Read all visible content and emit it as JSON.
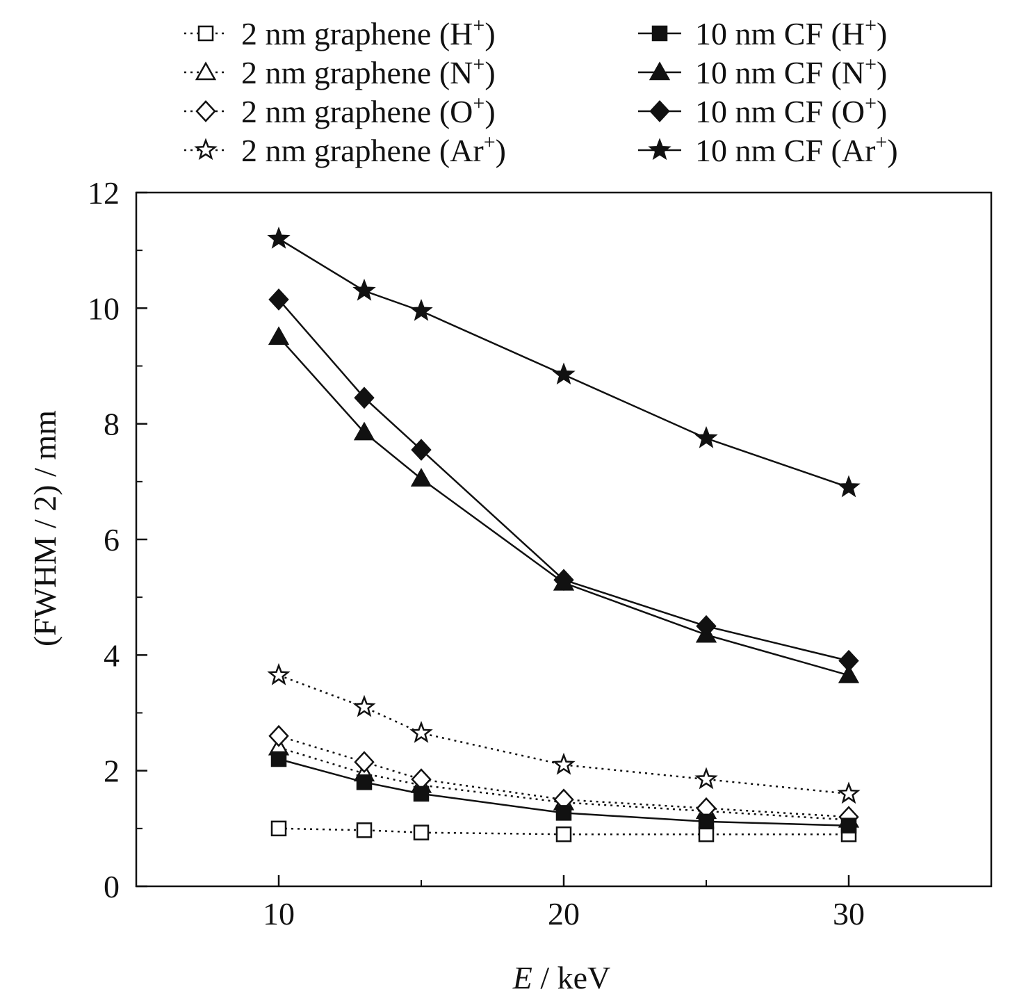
{
  "chart_data": {
    "type": "line",
    "title": "",
    "xlabel_italic": "E",
    "xlabel_rest": " / keV",
    "ylabel": "(FWHM / 2) / mm",
    "xlim": [
      5,
      35
    ],
    "ylim": [
      0,
      12
    ],
    "xticks": [
      10,
      20,
      30
    ],
    "yticks": [
      0,
      2,
      4,
      6,
      8,
      10,
      12
    ],
    "grid": false,
    "legend_placement": "top",
    "x": [
      10,
      13,
      15,
      20,
      25,
      30
    ],
    "series": [
      {
        "name_prefix": "2 nm graphene (",
        "ion": "H",
        "marker": "square",
        "filled": false,
        "dashed": true,
        "values": [
          1.0,
          0.97,
          0.93,
          0.9,
          0.9,
          0.9
        ]
      },
      {
        "name_prefix": "2 nm graphene (",
        "ion": "N",
        "marker": "triangle",
        "filled": false,
        "dashed": true,
        "values": [
          2.4,
          1.95,
          1.75,
          1.45,
          1.3,
          1.15
        ]
      },
      {
        "name_prefix": "2 nm graphene (",
        "ion": "O",
        "marker": "diamond",
        "filled": false,
        "dashed": true,
        "values": [
          2.6,
          2.15,
          1.85,
          1.5,
          1.35,
          1.2
        ]
      },
      {
        "name_prefix": "2 nm graphene (",
        "ion": "Ar",
        "marker": "star",
        "filled": false,
        "dashed": true,
        "values": [
          3.65,
          3.1,
          2.65,
          2.1,
          1.85,
          1.6
        ]
      },
      {
        "name_prefix": "10 nm CF (",
        "ion": "H",
        "marker": "square",
        "filled": true,
        "dashed": false,
        "values": [
          2.2,
          1.8,
          1.6,
          1.27,
          1.12,
          1.05
        ]
      },
      {
        "name_prefix": "10 nm CF (",
        "ion": "N",
        "marker": "triangle",
        "filled": true,
        "dashed": false,
        "values": [
          9.5,
          7.85,
          7.05,
          5.25,
          4.35,
          3.65
        ]
      },
      {
        "name_prefix": "10 nm CF (",
        "ion": "O",
        "marker": "diamond",
        "filled": true,
        "dashed": false,
        "values": [
          10.15,
          8.45,
          7.55,
          5.3,
          4.5,
          3.9
        ]
      },
      {
        "name_prefix": "10 nm CF (",
        "ion": "Ar",
        "marker": "star",
        "filled": true,
        "dashed": false,
        "values": [
          11.2,
          10.3,
          9.95,
          8.85,
          7.75,
          6.9
        ]
      }
    ],
    "legend_suffix_sup": "+",
    "legend_suffix_close": ")"
  }
}
